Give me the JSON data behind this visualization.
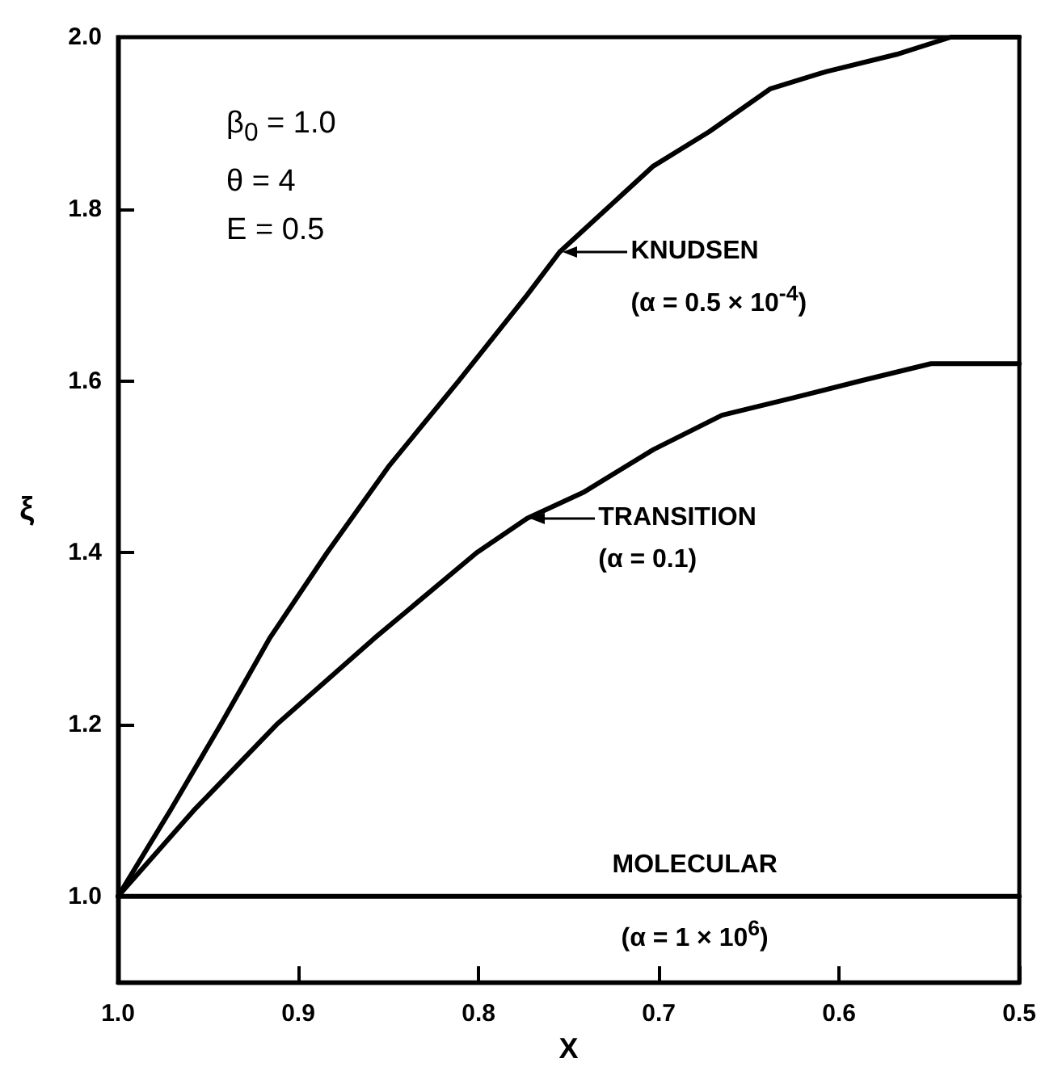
{
  "chart_data": {
    "type": "line",
    "xlabel": "X",
    "ylabel": "ξ",
    "xlim": [
      1.0,
      0.5
    ],
    "xticks": [
      {
        "value": 1,
        "label": "1.0"
      },
      0.9,
      0.8,
      0.7,
      0.6,
      0.5
    ],
    "ylim": [
      0.9,
      2.0
    ],
    "yticks": [
      {
        "value": 1,
        "label": "1.0"
      },
      1.2,
      1.4,
      1.6,
      1.8,
      {
        "value": 2,
        "label": "2.0"
      }
    ],
    "grid": false,
    "marker": "none",
    "line_style": "solid",
    "series": [
      {
        "color": "#000000",
        "x": [
          1.0,
          0.971,
          0.943,
          0.916,
          0.884,
          0.85,
          0.811,
          0.773,
          0.755,
          0.703,
          0.672,
          0.638,
          0.607,
          0.568,
          0.538,
          0.5
        ],
        "values": [
          1.0,
          1.1,
          1.2,
          1.3,
          1.4,
          1.5,
          1.6,
          1.7,
          1.75,
          1.85,
          1.89,
          1.94,
          1.96,
          1.98,
          2.0,
          2.0
        ]
      },
      {
        "color": "#000000",
        "x": [
          1.0,
          0.958,
          0.912,
          0.858,
          0.801,
          0.773,
          0.742,
          0.703,
          0.665,
          0.626,
          0.588,
          0.549,
          0.5
        ],
        "values": [
          1.0,
          1.1,
          1.2,
          1.3,
          1.4,
          1.44,
          1.47,
          1.52,
          1.56,
          1.58,
          1.6,
          1.62,
          1.62
        ]
      },
      {
        "color": "#000000",
        "x": [
          1.0,
          0.5
        ],
        "values": [
          1.0,
          1.0
        ]
      }
    ],
    "annotations": [
      {
        "text": "KNUDSEN\n(α = 0.5 × 10$^{-4}$)",
        "x": 0.755,
        "y": 1.75
      },
      {
        "text": "TRANSITION\n(α = 0.1)",
        "x": 0.773,
        "y": 1.44
      },
      {
        "text": "MOLECULAR",
        "x": 0.68,
        "y": 1.0
      },
      {
        "text": "(α = 1 × 10$^{6}$)",
        "x": 0.68,
        "y": 1.0
      },
      "β$_{0}$ = 1.0\nθ = 4\nE = 0.5"
    ]
  }
}
